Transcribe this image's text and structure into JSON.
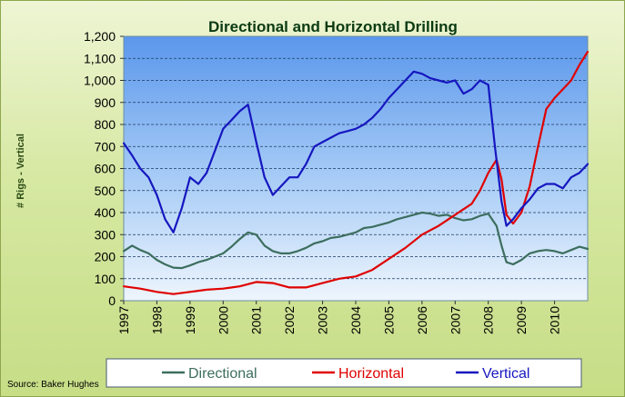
{
  "chart_data": {
    "type": "line",
    "title": "Directional and Horizontal Drilling",
    "ylabel": "# Rigs - Vertical",
    "xlabel": "",
    "source": "Source: Baker Hughes",
    "ylim": [
      0,
      1200
    ],
    "xlim": [
      1997.0,
      2011.0
    ],
    "yticks": [
      "0",
      "100",
      "200",
      "300",
      "400",
      "500",
      "600",
      "700",
      "800",
      "900",
      "1,000",
      "1,100",
      "1,200"
    ],
    "ytick_values": [
      0,
      100,
      200,
      300,
      400,
      500,
      600,
      700,
      800,
      900,
      1000,
      1100,
      1200
    ],
    "xticks": [
      "1997",
      "1998",
      "1999",
      "2000",
      "2001",
      "2002",
      "2003",
      "2004",
      "2005",
      "2006",
      "2007",
      "2008",
      "2009",
      "2010"
    ],
    "xtick_values": [
      1997,
      1998,
      1999,
      2000,
      2001,
      2002,
      2003,
      2004,
      2005,
      2006,
      2007,
      2008,
      2009,
      2010
    ],
    "grid": true,
    "legend": "bottom",
    "series": [
      {
        "name": "Directional",
        "color": "#3c6e5e",
        "x": [
          1997.0,
          1997.25,
          1997.5,
          1997.75,
          1998.0,
          1998.25,
          1998.5,
          1998.75,
          1999.0,
          1999.25,
          1999.5,
          1999.75,
          2000.0,
          2000.25,
          2000.5,
          2000.75,
          2001.0,
          2001.25,
          2001.5,
          2001.75,
          2002.0,
          2002.25,
          2002.5,
          2002.75,
          2003.0,
          2003.25,
          2003.5,
          2003.75,
          2004.0,
          2004.25,
          2004.5,
          2004.75,
          2005.0,
          2005.25,
          2005.5,
          2005.75,
          2006.0,
          2006.25,
          2006.5,
          2006.75,
          2007.0,
          2007.25,
          2007.5,
          2007.75,
          2008.0,
          2008.25,
          2008.4,
          2008.55,
          2008.75,
          2009.0,
          2009.25,
          2009.5,
          2009.75,
          2010.0,
          2010.25,
          2010.5,
          2010.75,
          2011.0
        ],
        "values": [
          225,
          250,
          230,
          215,
          185,
          165,
          150,
          148,
          160,
          175,
          185,
          200,
          215,
          245,
          280,
          310,
          300,
          250,
          225,
          215,
          215,
          225,
          240,
          260,
          270,
          285,
          290,
          300,
          310,
          330,
          335,
          345,
          355,
          370,
          380,
          390,
          400,
          395,
          385,
          390,
          375,
          365,
          370,
          385,
          395,
          340,
          250,
          175,
          165,
          185,
          215,
          225,
          230,
          225,
          215,
          230,
          245,
          235
        ]
      },
      {
        "name": "Horizontal",
        "color": "#e00000",
        "x": [
          1997.0,
          1997.5,
          1998.0,
          1998.5,
          1999.0,
          1999.5,
          2000.0,
          2000.5,
          2001.0,
          2001.5,
          2002.0,
          2002.5,
          2003.0,
          2003.5,
          2004.0,
          2004.5,
          2005.0,
          2005.5,
          2006.0,
          2006.5,
          2007.0,
          2007.5,
          2007.75,
          2008.0,
          2008.25,
          2008.4,
          2008.55,
          2008.75,
          2009.0,
          2009.25,
          2009.5,
          2009.75,
          2010.0,
          2010.25,
          2010.5,
          2010.75,
          2011.0
        ],
        "values": [
          65,
          55,
          40,
          30,
          40,
          50,
          55,
          65,
          85,
          80,
          60,
          60,
          80,
          100,
          110,
          140,
          190,
          240,
          300,
          340,
          390,
          440,
          500,
          580,
          640,
          550,
          390,
          350,
          400,
          520,
          700,
          870,
          920,
          960,
          1000,
          1070,
          1130
        ]
      },
      {
        "name": "Vertical",
        "color": "#1616c0",
        "x": [
          1997.0,
          1997.25,
          1997.5,
          1997.75,
          1998.0,
          1998.25,
          1998.5,
          1998.75,
          1999.0,
          1999.25,
          1999.5,
          1999.75,
          2000.0,
          2000.25,
          2000.5,
          2000.75,
          2001.0,
          2001.25,
          2001.5,
          2001.75,
          2002.0,
          2002.25,
          2002.5,
          2002.75,
          2003.0,
          2003.25,
          2003.5,
          2003.75,
          2004.0,
          2004.25,
          2004.5,
          2004.75,
          2005.0,
          2005.25,
          2005.5,
          2005.75,
          2006.0,
          2006.25,
          2006.5,
          2006.75,
          2007.0,
          2007.25,
          2007.5,
          2007.75,
          2008.0,
          2008.2,
          2008.4,
          2008.55,
          2008.75,
          2009.0,
          2009.25,
          2009.5,
          2009.75,
          2010.0,
          2010.25,
          2010.5,
          2010.75,
          2011.0
        ],
        "values": [
          715,
          660,
          600,
          560,
          480,
          370,
          310,
          420,
          560,
          530,
          580,
          680,
          780,
          820,
          860,
          890,
          720,
          560,
          480,
          520,
          560,
          560,
          620,
          700,
          720,
          740,
          760,
          770,
          780,
          800,
          830,
          870,
          920,
          960,
          1000,
          1040,
          1030,
          1010,
          1000,
          990,
          1000,
          940,
          960,
          1000,
          980,
          700,
          450,
          340,
          370,
          420,
          460,
          510,
          530,
          530,
          510,
          560,
          580,
          620
        ]
      }
    ]
  }
}
